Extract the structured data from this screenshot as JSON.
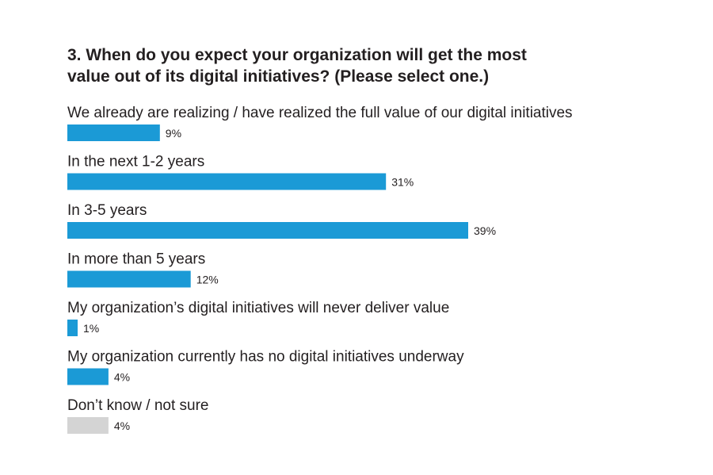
{
  "chart_data": {
    "type": "bar",
    "orientation": "horizontal",
    "title_lines": [
      "3. When do you expect your organization will get the most",
      "value out of its digital initiatives? (Please select one.)"
    ],
    "categories": [
      "We already are realizing / have realized the full value of our digital initiatives",
      "In the next 1-2 years",
      "In 3-5 years",
      "In more than 5 years",
      "My organization’s digital initiatives will never deliver value",
      "My organization currently has no digital initiatives underway",
      "Don’t know / not sure"
    ],
    "values": [
      9,
      31,
      39,
      12,
      1,
      4,
      4
    ],
    "value_labels": [
      "9%",
      "31%",
      "39%",
      "12%",
      "1%",
      "4%",
      "4%"
    ],
    "unit": "%",
    "xlim": [
      0,
      39
    ],
    "grid": false,
    "legend": "none",
    "colors": {
      "bar": "#1b9ad6",
      "bar_muted": "#d4d4d4"
    },
    "bar_color_keys": [
      "bar",
      "bar",
      "bar",
      "bar",
      "bar",
      "bar",
      "bar_muted"
    ]
  }
}
